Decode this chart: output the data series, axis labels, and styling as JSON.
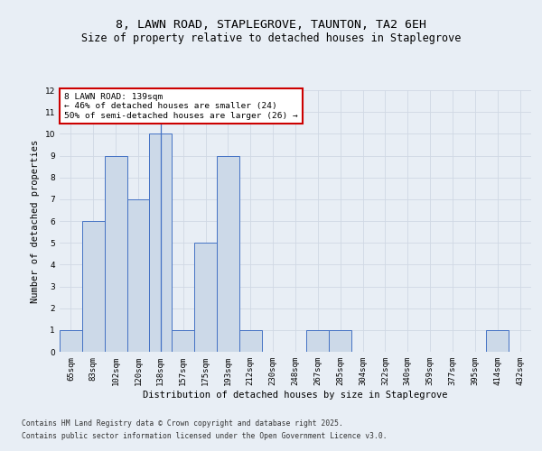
{
  "title_line1": "8, LAWN ROAD, STAPLEGROVE, TAUNTON, TA2 6EH",
  "title_line2": "Size of property relative to detached houses in Staplegrove",
  "xlabel": "Distribution of detached houses by size in Staplegrove",
  "ylabel": "Number of detached properties",
  "categories": [
    "65sqm",
    "83sqm",
    "102sqm",
    "120sqm",
    "138sqm",
    "157sqm",
    "175sqm",
    "193sqm",
    "212sqm",
    "230sqm",
    "248sqm",
    "267sqm",
    "285sqm",
    "304sqm",
    "322sqm",
    "340sqm",
    "359sqm",
    "377sqm",
    "395sqm",
    "414sqm",
    "432sqm"
  ],
  "values": [
    1,
    6,
    9,
    7,
    10,
    1,
    5,
    9,
    1,
    0,
    0,
    1,
    1,
    0,
    0,
    0,
    0,
    0,
    0,
    1,
    0
  ],
  "bar_color": "#ccd9e8",
  "bar_edge_color": "#4472c4",
  "highlight_bar_index": 4,
  "annotation_text": "8 LAWN ROAD: 139sqm\n← 46% of detached houses are smaller (24)\n50% of semi-detached houses are larger (26) →",
  "annotation_box_color": "#ffffff",
  "annotation_box_edge_color": "#cc0000",
  "ylim": [
    0,
    12
  ],
  "yticks": [
    0,
    1,
    2,
    3,
    4,
    5,
    6,
    7,
    8,
    9,
    10,
    11,
    12
  ],
  "grid_color": "#d0d8e4",
  "bg_color": "#e8eef5",
  "footer_line1": "Contains HM Land Registry data © Crown copyright and database right 2025.",
  "footer_line2": "Contains public sector information licensed under the Open Government Licence v3.0.",
  "title_fontsize": 9.5,
  "subtitle_fontsize": 8.5,
  "axis_label_fontsize": 7.5,
  "tick_fontsize": 6.5,
  "annotation_fontsize": 6.8,
  "footer_fontsize": 5.8
}
